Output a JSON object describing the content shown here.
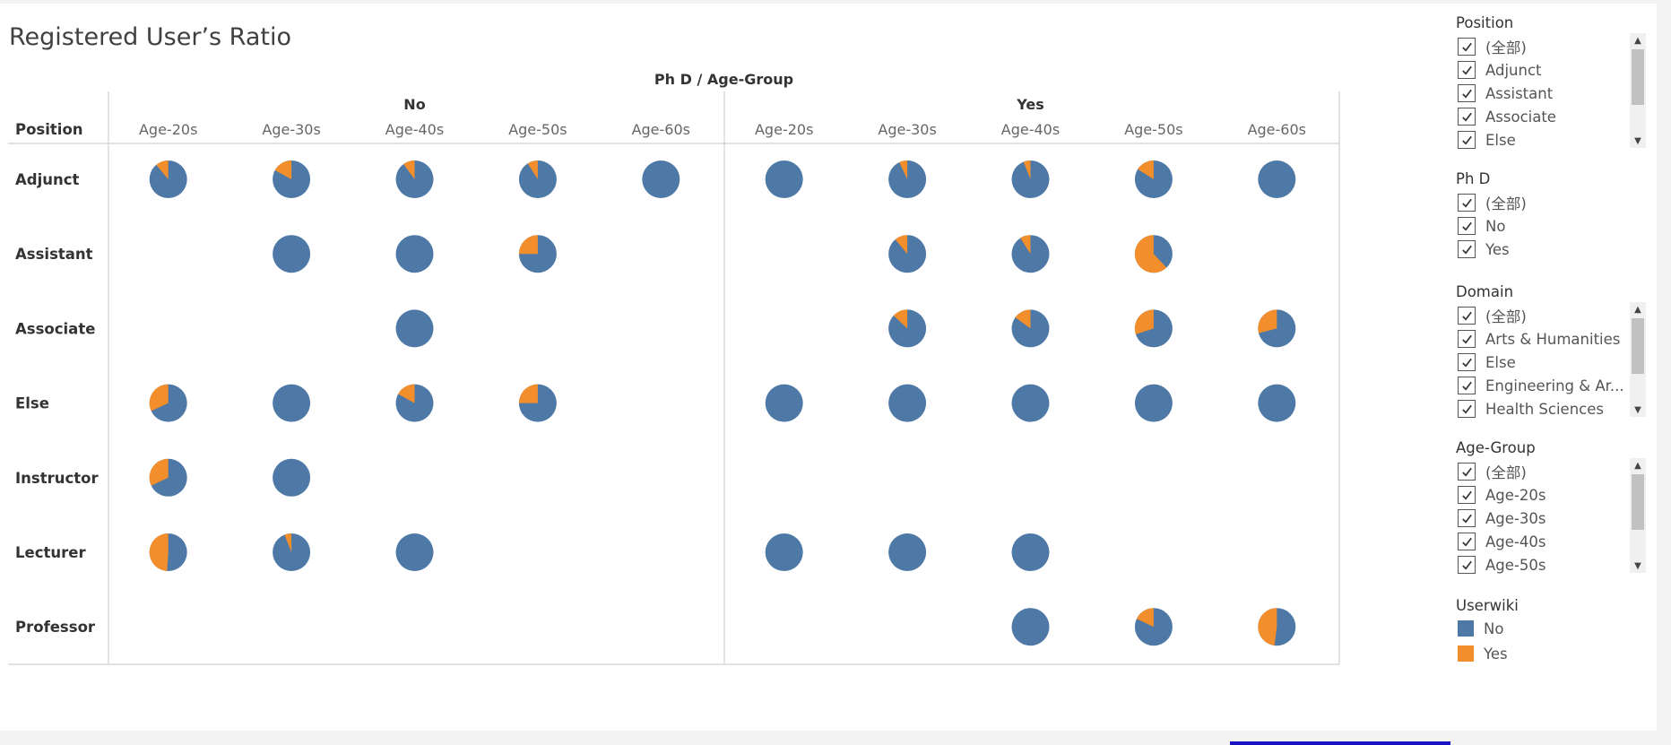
{
  "title": "Registered User’s Ratio",
  "colors": {
    "no": "#4e79a7",
    "yes": "#f28e2b"
  },
  "chart_data": {
    "type": "pie",
    "title": "Registered User’s Ratio",
    "row_field": "Position",
    "column_header": "Ph D / Age-Group",
    "phd_groups": [
      "No",
      "Yes"
    ],
    "age_groups": [
      "Age-20s",
      "Age-30s",
      "Age-40s",
      "Age-50s",
      "Age-60s"
    ],
    "rows": [
      "Adjunct",
      "Assistant",
      "Associate",
      "Else",
      "Instructor",
      "Lecturer",
      "Professor"
    ],
    "series": [
      {
        "name": "No",
        "color": "#4e79a7"
      },
      {
        "name": "Yes",
        "color": "#f28e2b"
      }
    ],
    "value_description": "share of Userwiki = Yes in each pie (remainder = No); null = no pie",
    "yes_share": [
      [
        0.11,
        0.17,
        0.1,
        0.09,
        0.0,
        0.0,
        0.07,
        0.06,
        0.16,
        0.0
      ],
      [
        null,
        0.0,
        0.0,
        0.25,
        null,
        null,
        0.11,
        0.09,
        0.62,
        null
      ],
      [
        null,
        null,
        0.0,
        null,
        null,
        null,
        0.13,
        0.15,
        0.3,
        0.29
      ],
      [
        0.32,
        0.0,
        0.17,
        0.25,
        null,
        0.0,
        0.0,
        0.0,
        0.0,
        0.0
      ],
      [
        0.32,
        0.0,
        null,
        null,
        null,
        null,
        null,
        null,
        null,
        null
      ],
      [
        0.49,
        0.06,
        0.0,
        null,
        null,
        0.0,
        0.0,
        0.0,
        null,
        null
      ],
      [
        null,
        null,
        null,
        null,
        null,
        null,
        null,
        0.0,
        0.18,
        0.48
      ]
    ]
  },
  "filters": [
    {
      "title": "Position",
      "items": [
        "(全部)",
        "Adjunct",
        "Assistant",
        "Associate",
        "Else"
      ],
      "scrollable": true
    },
    {
      "title": "Ph D",
      "items": [
        "(全部)",
        "No",
        "Yes"
      ],
      "scrollable": false
    },
    {
      "title": "Domain",
      "items": [
        "(全部)",
        "Arts & Humanities",
        "Else",
        "Engineering & Ar...",
        "Health Sciences"
      ],
      "scrollable": true
    },
    {
      "title": "Age-Group",
      "items": [
        "(全部)",
        "Age-20s",
        "Age-30s",
        "Age-40s",
        "Age-50s"
      ],
      "scrollable": true
    }
  ],
  "legend": {
    "title": "Userwiki",
    "items": [
      {
        "label": "No",
        "color": "#4e79a7"
      },
      {
        "label": "Yes",
        "color": "#f28e2b"
      }
    ]
  }
}
